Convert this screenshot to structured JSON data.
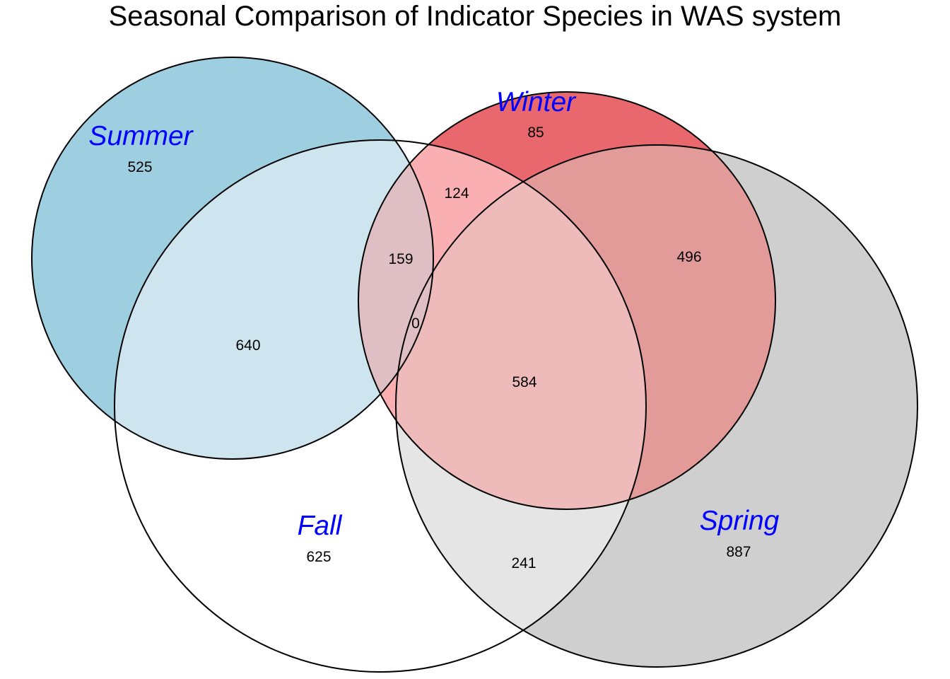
{
  "title": "Seasonal Comparison of Indicator Species in WAS system",
  "label_color": "#0000ff",
  "sets": [
    {
      "name": "Summer",
      "fill": "#9ecfe0"
    },
    {
      "name": "Fall",
      "fill": "#ffffff"
    },
    {
      "name": "Winter",
      "fill": "#e8686d"
    },
    {
      "name": "Spring",
      "fill": "#cfcfcf"
    }
  ],
  "regions": [
    {
      "id": "summer-only",
      "sets": [
        "Summer"
      ],
      "count": "525"
    },
    {
      "id": "winter-only",
      "sets": [
        "Winter"
      ],
      "count": "85"
    },
    {
      "id": "fall-only",
      "sets": [
        "Fall"
      ],
      "count": "625"
    },
    {
      "id": "spring-only",
      "sets": [
        "Spring"
      ],
      "count": "887"
    },
    {
      "id": "summer-fall",
      "sets": [
        "Summer",
        "Fall"
      ],
      "count": "640"
    },
    {
      "id": "fall-winter",
      "sets": [
        "Fall",
        "Winter"
      ],
      "count": "124"
    },
    {
      "id": "summer-fall-winter",
      "sets": [
        "Summer",
        "Fall",
        "Winter"
      ],
      "count": "159"
    },
    {
      "id": "all-four",
      "sets": [
        "Summer",
        "Fall",
        "Winter",
        "Spring"
      ],
      "count": "0"
    },
    {
      "id": "fall-winter-spring",
      "sets": [
        "Fall",
        "Winter",
        "Spring"
      ],
      "count": "584"
    },
    {
      "id": "winter-spring",
      "sets": [
        "Winter",
        "Spring"
      ],
      "count": "496"
    },
    {
      "id": "fall-spring",
      "sets": [
        "Fall",
        "Spring"
      ],
      "count": "241"
    }
  ]
}
